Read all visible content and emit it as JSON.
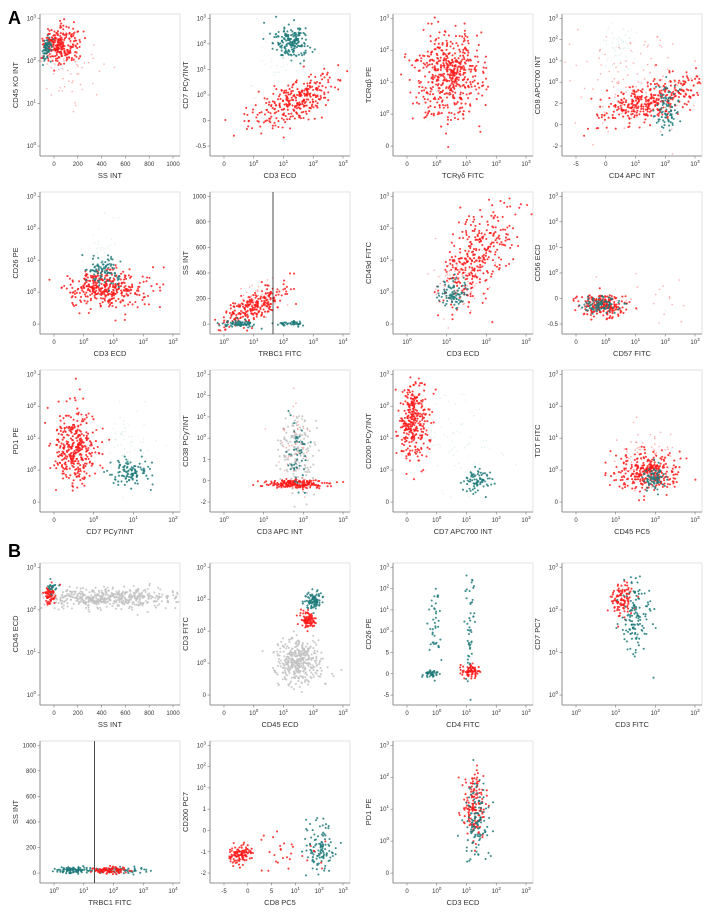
{
  "figure": {
    "panel_labels": [
      "A",
      "B"
    ],
    "colors": {
      "red": "#ff1a1a",
      "teal": "#1f7a7a",
      "light_teal": "#b5d6d6",
      "gray": "#c2c2c2",
      "axis": "#777777",
      "text": "#333333"
    }
  },
  "chart_data": [
    {
      "type": "scatter",
      "panel": "A",
      "xlabel": "SS INT",
      "ylabel": "CD45 KO INT",
      "x_ticks": [
        "0",
        "200",
        "400",
        "600",
        "800",
        "1000"
      ],
      "y_ticks": [
        "10^3",
        "10^2",
        "10^1",
        "10^0"
      ],
      "clusters": [
        {
          "color": "red",
          "cx": 0.14,
          "cy": 0.22,
          "sx": 0.07,
          "sy": 0.06,
          "n": 260
        },
        {
          "color": "teal",
          "cx": 0.05,
          "cy": 0.25,
          "sx": 0.015,
          "sy": 0.04,
          "n": 70
        },
        {
          "color": "red",
          "cx": 0.2,
          "cy": 0.38,
          "sx": 0.12,
          "sy": 0.12,
          "n": 60,
          "faint": true
        }
      ]
    },
    {
      "type": "scatter",
      "panel": "A",
      "xlabel": "CD3 ECD",
      "ylabel": "CD7 PCy7INT",
      "x_ticks": [
        "0",
        "10^0",
        "10^1",
        "10^2",
        "10^3"
      ],
      "y_ticks": [
        "10^3",
        "10^2",
        "10^1",
        "10^0",
        "0",
        "-0.5"
      ],
      "clusters": [
        {
          "color": "teal",
          "cx": 0.58,
          "cy": 0.2,
          "sx": 0.06,
          "sy": 0.06,
          "n": 180
        },
        {
          "color": "red",
          "cx": 0.6,
          "cy": 0.62,
          "sx": 0.16,
          "sy": 0.07,
          "n": 320,
          "tilt": -0.4
        },
        {
          "color": "teal",
          "cx": 0.45,
          "cy": 0.35,
          "sx": 0.1,
          "sy": 0.1,
          "n": 40,
          "faint": true
        }
      ]
    },
    {
      "type": "scatter",
      "panel": "A",
      "xlabel": "TCRγδ FITC",
      "ylabel": "TCRαβ PE",
      "x_ticks": [
        "0",
        "10^0",
        "10^1",
        "10^2",
        "10^3"
      ],
      "y_ticks": [
        "10^3",
        "10^2",
        "10^1",
        "10^0",
        "0"
      ],
      "clusters": [
        {
          "color": "red",
          "cx": 0.4,
          "cy": 0.42,
          "sx": 0.12,
          "sy": 0.16,
          "n": 520
        },
        {
          "color": "teal",
          "cx": 0.38,
          "cy": 0.5,
          "sx": 0.1,
          "sy": 0.1,
          "n": 30,
          "faint": true
        }
      ]
    },
    {
      "type": "scatter",
      "panel": "A",
      "xlabel": "CD4 APC INT",
      "ylabel": "CD8 APC700 INT",
      "x_ticks": [
        "-5",
        "0",
        "10^1",
        "10^2",
        "10^3"
      ],
      "y_ticks": [
        "10^3",
        "10^2",
        "10^1",
        "10^0",
        "2",
        "0",
        "-2"
      ],
      "clusters": [
        {
          "color": "red",
          "cx": 0.65,
          "cy": 0.6,
          "sx": 0.2,
          "sy": 0.07,
          "n": 380,
          "tilt": -0.3
        },
        {
          "color": "teal",
          "cx": 0.75,
          "cy": 0.66,
          "sx": 0.04,
          "sy": 0.08,
          "n": 90
        },
        {
          "color": "teal",
          "cx": 0.4,
          "cy": 0.23,
          "sx": 0.06,
          "sy": 0.08,
          "n": 60,
          "faint": true
        },
        {
          "color": "red",
          "cx": 0.5,
          "cy": 0.45,
          "sx": 0.25,
          "sy": 0.2,
          "n": 120,
          "faint": true
        }
      ]
    },
    {
      "type": "scatter",
      "panel": "A",
      "xlabel": "CD3 ECD",
      "ylabel": "CD26 PE",
      "x_ticks": [
        "0",
        "10^0",
        "10^1",
        "10^2",
        "10^3"
      ],
      "y_ticks": [
        "10^3",
        "10^2",
        "10^1",
        "10^0",
        "0"
      ],
      "clusters": [
        {
          "color": "red",
          "cx": 0.47,
          "cy": 0.68,
          "sx": 0.14,
          "sy": 0.07,
          "n": 380
        },
        {
          "color": "teal",
          "cx": 0.45,
          "cy": 0.56,
          "sx": 0.06,
          "sy": 0.05,
          "n": 100
        },
        {
          "color": "teal",
          "cx": 0.45,
          "cy": 0.45,
          "sx": 0.08,
          "sy": 0.12,
          "n": 40,
          "faint": true
        }
      ]
    },
    {
      "type": "scatter",
      "panel": "A",
      "xlabel": "TRBC1 FITC",
      "ylabel": "SS INT",
      "x_ticks": [
        "10^0",
        "10^1",
        "10^2",
        "10^3",
        "10^4"
      ],
      "y_ticks": [
        "1000",
        "800",
        "600",
        "400",
        "200",
        "0"
      ],
      "gate_x": 0.45,
      "clusters": [
        {
          "color": "red",
          "cx": 0.3,
          "cy": 0.82,
          "sx": 0.12,
          "sy": 0.05,
          "n": 260,
          "tilt": -0.5
        },
        {
          "color": "teal",
          "cx": 0.2,
          "cy": 0.93,
          "sx": 0.06,
          "sy": 0.012,
          "n": 70
        },
        {
          "color": "teal",
          "cx": 0.58,
          "cy": 0.93,
          "sx": 0.05,
          "sy": 0.01,
          "n": 40
        },
        {
          "color": "red",
          "cx": 0.35,
          "cy": 0.75,
          "sx": 0.08,
          "sy": 0.06,
          "n": 40,
          "faint": true
        }
      ]
    },
    {
      "type": "scatter",
      "panel": "A",
      "xlabel": "CD3 ECD",
      "ylabel": "CD49d FITC",
      "x_ticks": [
        "10^0",
        "10^1",
        "10^2",
        "10^3"
      ],
      "y_ticks": [
        "10^3",
        "10^2",
        "10^1",
        "10^0",
        "0"
      ],
      "clusters": [
        {
          "color": "red",
          "cx": 0.6,
          "cy": 0.45,
          "sx": 0.12,
          "sy": 0.14,
          "n": 330,
          "tilt": -0.8
        },
        {
          "color": "teal",
          "cx": 0.43,
          "cy": 0.72,
          "sx": 0.05,
          "sy": 0.05,
          "n": 90
        },
        {
          "color": "red",
          "cx": 0.45,
          "cy": 0.65,
          "sx": 0.1,
          "sy": 0.1,
          "n": 80,
          "faint": true
        }
      ]
    },
    {
      "type": "scatter",
      "panel": "A",
      "xlabel": "CD57 FITC",
      "ylabel": "CD56 ECD",
      "x_ticks": [
        "0",
        "10^0",
        "10^1",
        "10^2",
        "10^3"
      ],
      "y_ticks": [
        "10^3",
        "10^2",
        "10^1",
        "10^0",
        "0",
        "-0.5"
      ],
      "clusters": [
        {
          "color": "red",
          "cx": 0.3,
          "cy": 0.8,
          "sx": 0.08,
          "sy": 0.04,
          "n": 220
        },
        {
          "color": "teal",
          "cx": 0.27,
          "cy": 0.79,
          "sx": 0.07,
          "sy": 0.03,
          "n": 90
        },
        {
          "color": "red",
          "cx": 0.55,
          "cy": 0.75,
          "sx": 0.2,
          "sy": 0.08,
          "n": 25,
          "faint": true
        }
      ]
    },
    {
      "type": "scatter",
      "panel": "A",
      "xlabel": "CD7 PCy7INT",
      "ylabel": "PD1 PE",
      "x_ticks": [
        "0",
        "10^0",
        "10^1",
        "10^2"
      ],
      "y_ticks": [
        "10^3",
        "10^2",
        "10^1",
        "10^0",
        "0"
      ],
      "clusters": [
        {
          "color": "red",
          "cx": 0.25,
          "cy": 0.55,
          "sx": 0.07,
          "sy": 0.14,
          "n": 360
        },
        {
          "color": "teal",
          "cx": 0.65,
          "cy": 0.72,
          "sx": 0.07,
          "sy": 0.05,
          "n": 110
        },
        {
          "color": "teal",
          "cx": 0.62,
          "cy": 0.55,
          "sx": 0.08,
          "sy": 0.15,
          "n": 60,
          "faint": true
        }
      ]
    },
    {
      "type": "scatter",
      "panel": "A",
      "xlabel": "CD3 APC INT",
      "ylabel": "CD38 PCy7INT",
      "x_ticks": [
        "10^0",
        "10^1",
        "10^2",
        "10^3"
      ],
      "y_ticks": [
        "10^3",
        "10^2",
        "10^1",
        "10^0",
        "1",
        "0",
        "-2"
      ],
      "clusters": [
        {
          "color": "red",
          "cx": 0.62,
          "cy": 0.8,
          "sx": 0.1,
          "sy": 0.015,
          "n": 220
        },
        {
          "color": "gray",
          "cx": 0.62,
          "cy": 0.55,
          "sx": 0.06,
          "sy": 0.14,
          "n": 160
        },
        {
          "color": "teal",
          "cx": 0.63,
          "cy": 0.6,
          "sx": 0.04,
          "sy": 0.1,
          "n": 50
        },
        {
          "color": "red",
          "cx": 0.6,
          "cy": 0.55,
          "sx": 0.07,
          "sy": 0.15,
          "n": 40,
          "faint": true
        }
      ]
    },
    {
      "type": "scatter",
      "panel": "A",
      "xlabel": "CD7 APC700 INT",
      "ylabel": "CD200 PCy7INT",
      "x_ticks": [
        "0",
        "10^0",
        "10^1",
        "10^2",
        "10^3"
      ],
      "y_ticks": [
        "10^3",
        "10^2",
        "10^1",
        "10^0",
        "0"
      ],
      "clusters": [
        {
          "color": "red",
          "cx": 0.15,
          "cy": 0.35,
          "sx": 0.05,
          "sy": 0.14,
          "n": 320
        },
        {
          "color": "teal",
          "cx": 0.6,
          "cy": 0.78,
          "sx": 0.05,
          "sy": 0.04,
          "n": 80
        },
        {
          "color": "teal",
          "cx": 0.4,
          "cy": 0.5,
          "sx": 0.18,
          "sy": 0.2,
          "n": 90,
          "faint": true
        }
      ]
    },
    {
      "type": "scatter",
      "panel": "A",
      "xlabel": "CD45 PC5",
      "ylabel": "TDT FITC",
      "x_ticks": [
        "0",
        "10^1",
        "10^2",
        "10^3"
      ],
      "y_ticks": [
        "10^3",
        "10^2",
        "10^1",
        "10^0",
        "0"
      ],
      "clusters": [
        {
          "color": "red",
          "cx": 0.62,
          "cy": 0.72,
          "sx": 0.12,
          "sy": 0.07,
          "n": 320
        },
        {
          "color": "teal",
          "cx": 0.66,
          "cy": 0.76,
          "sx": 0.04,
          "sy": 0.04,
          "n": 80
        },
        {
          "color": "red",
          "cx": 0.6,
          "cy": 0.6,
          "sx": 0.12,
          "sy": 0.1,
          "n": 60,
          "faint": true
        }
      ]
    },
    {
      "type": "scatter",
      "panel": "B",
      "xlabel": "SS INT",
      "ylabel": "CD45 ECD",
      "x_ticks": [
        "0",
        "200",
        "400",
        "600",
        "800",
        "1000"
      ],
      "y_ticks": [
        "10^3",
        "10^2",
        "10^1",
        "10^0"
      ],
      "clusters": [
        {
          "color": "gray",
          "cx": 0.5,
          "cy": 0.25,
          "sx": 0.28,
          "sy": 0.035,
          "n": 520
        },
        {
          "color": "red",
          "cx": 0.07,
          "cy": 0.23,
          "sx": 0.02,
          "sy": 0.03,
          "n": 70
        },
        {
          "color": "teal",
          "cx": 0.08,
          "cy": 0.17,
          "sx": 0.02,
          "sy": 0.02,
          "n": 20
        }
      ]
    },
    {
      "type": "scatter",
      "panel": "B",
      "xlabel": "CD45 ECD",
      "ylabel": "CD3 FITC",
      "x_ticks": [
        "0",
        "10^0",
        "10^1",
        "10^2",
        "10^3"
      ],
      "y_ticks": [
        "10^3",
        "10^2",
        "10^1",
        "10^0",
        "0"
      ],
      "clusters": [
        {
          "color": "gray",
          "cx": 0.63,
          "cy": 0.7,
          "sx": 0.08,
          "sy": 0.08,
          "n": 380
        },
        {
          "color": "teal",
          "cx": 0.74,
          "cy": 0.27,
          "sx": 0.03,
          "sy": 0.03,
          "n": 90
        },
        {
          "color": "red",
          "cx": 0.7,
          "cy": 0.4,
          "sx": 0.03,
          "sy": 0.03,
          "n": 90
        }
      ]
    },
    {
      "type": "scatter",
      "panel": "B",
      "xlabel": "CD4 FITC",
      "ylabel": "CD26 PE",
      "x_ticks": [
        "0",
        "10^0",
        "10^1",
        "10^2",
        "10^3"
      ],
      "y_ticks": [
        "10^3",
        "10^2",
        "10^1",
        "10^0",
        "5",
        "0",
        "-5"
      ],
      "clusters": [
        {
          "color": "teal",
          "cx": 0.3,
          "cy": 0.48,
          "sx": 0.02,
          "sy": 0.14,
          "n": 40
        },
        {
          "color": "teal",
          "cx": 0.55,
          "cy": 0.45,
          "sx": 0.02,
          "sy": 0.18,
          "n": 50
        },
        {
          "color": "red",
          "cx": 0.55,
          "cy": 0.76,
          "sx": 0.04,
          "sy": 0.02,
          "n": 80
        },
        {
          "color": "teal",
          "cx": 0.27,
          "cy": 0.78,
          "sx": 0.03,
          "sy": 0.015,
          "n": 40
        }
      ]
    },
    {
      "type": "scatter",
      "panel": "B",
      "xlabel": "CD3 FITC",
      "ylabel": "CD7 PC7",
      "x_ticks": [
        "10^0",
        "10^1",
        "10^2",
        "10^3"
      ],
      "y_ticks": [
        "10^3",
        "10^2",
        "10^1",
        "10^0"
      ],
      "clusters": [
        {
          "color": "red",
          "cx": 0.43,
          "cy": 0.26,
          "sx": 0.04,
          "sy": 0.06,
          "n": 110
        },
        {
          "color": "teal",
          "cx": 0.53,
          "cy": 0.4,
          "sx": 0.05,
          "sy": 0.13,
          "n": 130
        }
      ]
    },
    {
      "type": "scatter",
      "panel": "B",
      "xlabel": "TRBC1 FITC",
      "ylabel": "SS INT",
      "x_ticks": [
        "10^0",
        "10^1",
        "10^2",
        "10^3",
        "10^4"
      ],
      "y_ticks": [
        "1000",
        "800",
        "600",
        "400",
        "200",
        "0"
      ],
      "gate_x": 0.39,
      "clusters": [
        {
          "color": "teal",
          "cx": 0.23,
          "cy": 0.91,
          "sx": 0.07,
          "sy": 0.012,
          "n": 90
        },
        {
          "color": "teal",
          "cx": 0.55,
          "cy": 0.91,
          "sx": 0.1,
          "sy": 0.012,
          "n": 70
        },
        {
          "color": "red",
          "cx": 0.5,
          "cy": 0.91,
          "sx": 0.07,
          "sy": 0.012,
          "n": 90
        }
      ]
    },
    {
      "type": "scatter",
      "panel": "B",
      "xlabel": "CD8 PC5",
      "ylabel": "CD200 PC7",
      "x_ticks": [
        "-5",
        "0",
        "5",
        "10^1",
        "10^2",
        "10^3"
      ],
      "y_ticks": [
        "10^3",
        "10^2",
        "10^1",
        "1",
        "0",
        "-1",
        "-2"
      ],
      "clusters": [
        {
          "color": "red",
          "cx": 0.22,
          "cy": 0.8,
          "sx": 0.04,
          "sy": 0.03,
          "n": 110
        },
        {
          "color": "teal",
          "cx": 0.78,
          "cy": 0.75,
          "sx": 0.05,
          "sy": 0.09,
          "n": 110
        },
        {
          "color": "red",
          "cx": 0.5,
          "cy": 0.78,
          "sx": 0.15,
          "sy": 0.06,
          "n": 30
        }
      ]
    },
    {
      "type": "scatter",
      "panel": "B",
      "xlabel": "CD3 ECD",
      "ylabel": "PD1 PE",
      "x_ticks": [
        "0",
        "10^0",
        "10^1",
        "10^2",
        "10^3"
      ],
      "y_ticks": [
        "10^3",
        "10^2",
        "10^1",
        "10^0",
        "0"
      ],
      "clusters": [
        {
          "color": "red",
          "cx": 0.58,
          "cy": 0.47,
          "sx": 0.04,
          "sy": 0.12,
          "n": 150
        },
        {
          "color": "teal",
          "cx": 0.6,
          "cy": 0.58,
          "sx": 0.04,
          "sy": 0.14,
          "n": 120
        }
      ]
    }
  ]
}
